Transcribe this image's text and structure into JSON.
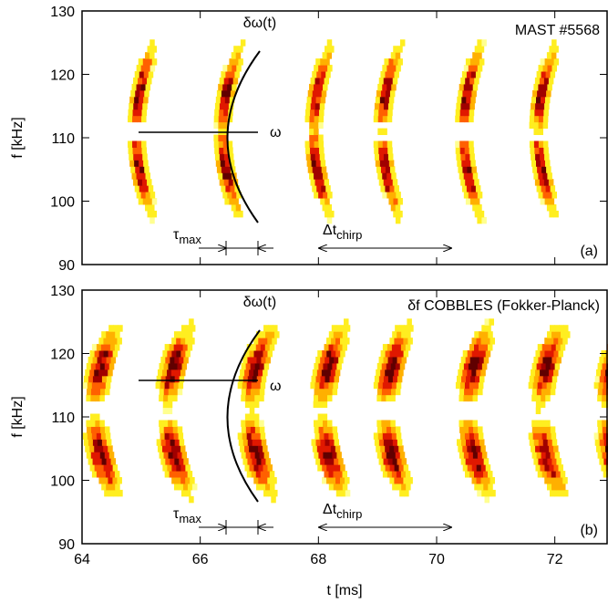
{
  "chart_data": [
    {
      "type": "spectrogram",
      "title": "MAST #5568",
      "panel_label": "(a)",
      "ylabel": "f [kHz]",
      "xlim": [
        64,
        72.9
      ],
      "xticks": [
        64,
        66,
        68,
        70,
        72
      ],
      "ylim": [
        90,
        130
      ],
      "yticks": [
        90,
        100,
        110,
        120,
        130
      ],
      "bursts": [
        64.92,
        66.38,
        67.92,
        69.08,
        70.46,
        71.72
      ],
      "curve_label": "δω(t)",
      "freq_label": "ω",
      "tau": {
        "base": "τ",
        "sub": "max"
      },
      "chirp": {
        "base": "Δt",
        "sub": "chirp"
      }
    },
    {
      "type": "spectrogram",
      "title": "δf COBBLES (Fokker-Planck)",
      "panel_label": "(b)",
      "ylabel": "f [kHz]",
      "xlabel": "t [ms]",
      "xlim": [
        64,
        72.9
      ],
      "xticks": [
        64,
        66,
        68,
        70,
        72
      ],
      "ylim": [
        90,
        130
      ],
      "yticks": [
        90,
        100,
        110,
        120,
        130
      ],
      "bursts": [
        64.23,
        65.46,
        66.85,
        68.08,
        69.15,
        70.54,
        71.77,
        72.88
      ],
      "curve_label": "δω(t)",
      "freq_label": "ω",
      "tau": {
        "base": "τ",
        "sub": "max"
      },
      "chirp": {
        "base": "Δt",
        "sub": "chirp"
      }
    }
  ]
}
